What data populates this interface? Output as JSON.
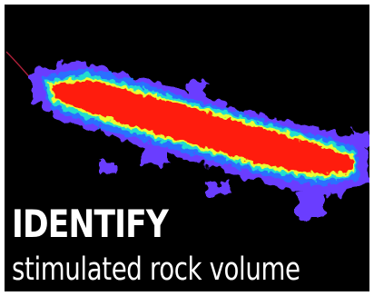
{
  "headline": "IDENTIFY",
  "subline": "stimulated rock volume",
  "colors": {
    "background": "#000000",
    "border": "#ffffff",
    "text": "#ffffff",
    "well_trace": "#b0203a",
    "volume_core": "#ff1a0a",
    "volume_mid": "#eaff30",
    "volume_cyan": "#22ddd0",
    "volume_blue": "#2a70ff",
    "volume_outer": "#6a3cff"
  }
}
